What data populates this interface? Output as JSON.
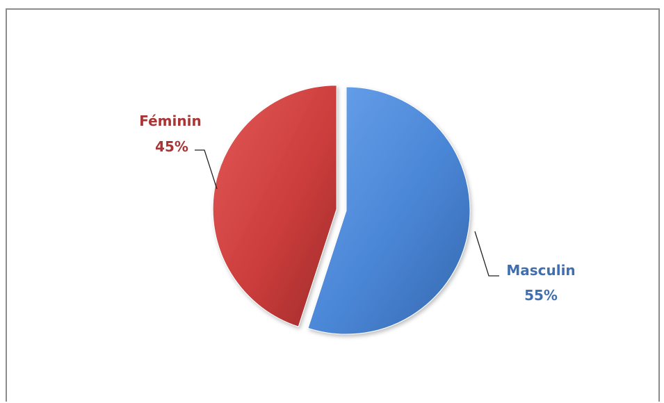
{
  "chart_data": {
    "type": "pie",
    "title": "",
    "slices": [
      {
        "label": "Masculin",
        "percent_label": "55%",
        "value": 55,
        "color": "#4a86d6",
        "exploded": false
      },
      {
        "label": "Féminin",
        "percent_label": "45%",
        "value": 45,
        "color": "#cc3d3c",
        "exploded": true
      }
    ],
    "start_angle_deg": 0,
    "direction": "clockwise",
    "legend": "none",
    "label_color": {
      "Masculin": "#3f6fb0",
      "Féminin": "#a93535"
    }
  }
}
